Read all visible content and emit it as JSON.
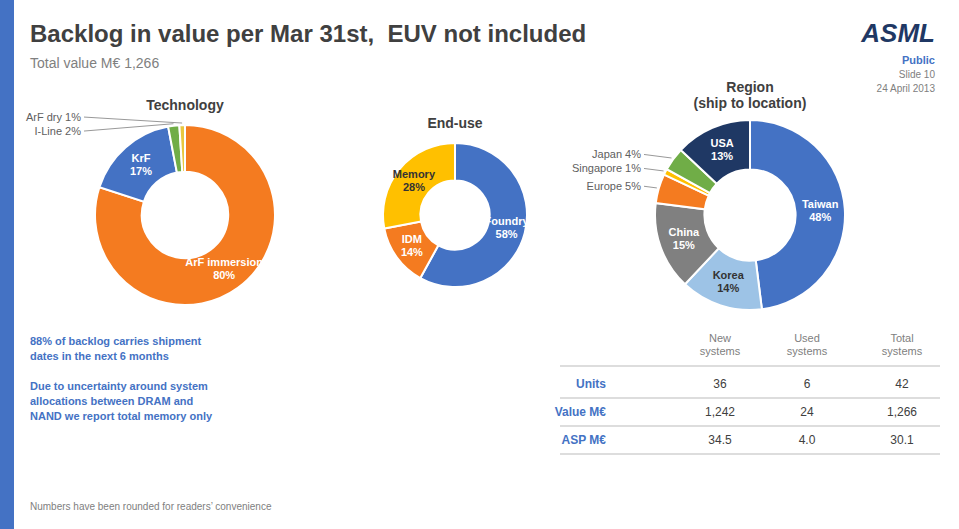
{
  "title": "Backlog in value per Mar 31st,  EUV not included",
  "subtitle": "Total value M€ 1,266",
  "annotations": [
    {
      "text": "ASML",
      "color": "#1f3864"
    },
    {
      "text": "Public",
      "color": "#4472c4"
    },
    {
      "text": "Slide 10",
      "color": "#808080"
    },
    {
      "text": "24 April 2013",
      "color": "#808080"
    },
    {
      "text": "88% of backlog carries shipment\ndates in the next 6 months",
      "color": "#4472c4"
    },
    {
      "text": "Due to uncertainty around system\nallocations between DRAM and\nNAND we report total memory only",
      "color": "#4472c4"
    },
    {
      "text": "Numbers have been rounded for readers’ convenience",
      "color": "#808080"
    }
  ],
  "chart_data": [
    {
      "type": "pie",
      "title": "Technology",
      "categories": [
        "ArF immersion",
        "KrF",
        "I-Line",
        "ArF dry"
      ],
      "values": [
        80,
        17,
        2,
        1
      ],
      "value_labels": [
        "80%",
        "17%",
        "2%",
        "1%"
      ],
      "colors": [
        "#f47b20",
        "#4472c4",
        "#70ad47",
        "#e8c840"
      ],
      "data_labels": true
    },
    {
      "type": "pie",
      "title": "End-use",
      "categories": [
        "Foundry",
        "IDM",
        "Memory"
      ],
      "values": [
        58,
        14,
        28
      ],
      "value_labels": [
        "58%",
        "14%",
        "28%"
      ],
      "colors": [
        "#4472c4",
        "#f47b20",
        "#ffc000"
      ],
      "data_labels": true
    },
    {
      "type": "pie",
      "title": "Region\n(ship to location)",
      "categories": [
        "Taiwan",
        "Korea",
        "China",
        "Europe",
        "Singapore",
        "Japan",
        "USA"
      ],
      "values": [
        48,
        14,
        15,
        5,
        1,
        4,
        13
      ],
      "value_labels": [
        "48%",
        "14%",
        "15%",
        "5%",
        "1%",
        "4%",
        "13%"
      ],
      "colors": [
        "#4472c4",
        "#9dc3e6",
        "#808080",
        "#f47b20",
        "#ffc000",
        "#70ad47",
        "#1f3864"
      ],
      "data_labels": true
    },
    {
      "type": "table",
      "categories": [
        "Units",
        "Value M€",
        "ASP M€"
      ],
      "color": "#4472c4",
      "series": [
        {
          "name": "New\nsystems",
          "values": [
            36,
            1242,
            34.5
          ],
          "value_labels": [
            "36",
            "1,242",
            "34.5"
          ]
        },
        {
          "name": "Used\nsystems",
          "values": [
            6,
            24,
            4.0
          ],
          "value_labels": [
            "6",
            "24",
            "4.0"
          ]
        },
        {
          "name": "Total\nsystems",
          "values": [
            42,
            1266,
            30.1
          ],
          "value_labels": [
            "42",
            "1,266",
            "30.1"
          ]
        }
      ]
    }
  ]
}
